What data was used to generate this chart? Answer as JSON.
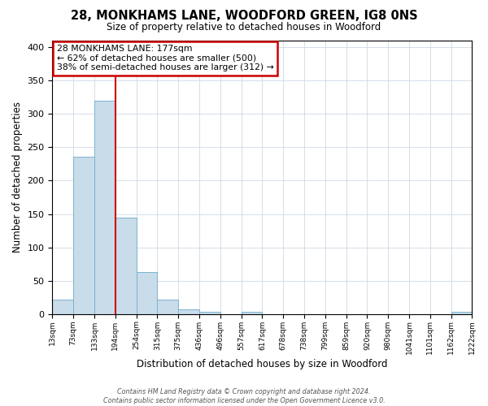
{
  "title": "28, MONKHAMS LANE, WOODFORD GREEN, IG8 0NS",
  "subtitle": "Size of property relative to detached houses in Woodford",
  "xlabel": "Distribution of detached houses by size in Woodford",
  "ylabel": "Number of detached properties",
  "bar_values": [
    22,
    236,
    320,
    144,
    63,
    21,
    7,
    3,
    0,
    3,
    0,
    0,
    0,
    0,
    0,
    0,
    0,
    0,
    0,
    3
  ],
  "bin_labels": [
    "13sqm",
    "73sqm",
    "133sqm",
    "194sqm",
    "254sqm",
    "315sqm",
    "375sqm",
    "436sqm",
    "496sqm",
    "557sqm",
    "617sqm",
    "678sqm",
    "738sqm",
    "799sqm",
    "859sqm",
    "920sqm",
    "980sqm",
    "1041sqm",
    "1101sqm",
    "1162sqm",
    "1222sqm"
  ],
  "bar_color": "#c9dcea",
  "bar_edge_color": "#7ab3d0",
  "vline_color": "#cc0000",
  "ylim": [
    0,
    410
  ],
  "yticks": [
    0,
    50,
    100,
    150,
    200,
    250,
    300,
    350,
    400
  ],
  "annotation_title": "28 MONKHAMS LANE: 177sqm",
  "annotation_line1": "← 62% of detached houses are smaller (500)",
  "annotation_line2": "38% of semi-detached houses are larger (312) →",
  "annotation_box_color": "#ffffff",
  "annotation_border_color": "#cc0000",
  "footer_line1": "Contains HM Land Registry data © Crown copyright and database right 2024.",
  "footer_line2": "Contains public sector information licensed under the Open Government Licence v3.0.",
  "background_color": "#ffffff",
  "grid_color": "#cdd8e5"
}
